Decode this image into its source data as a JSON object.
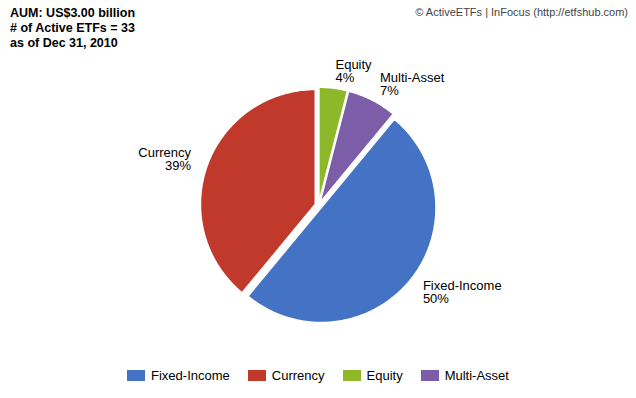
{
  "chart_data": {
    "type": "pie",
    "categories": [
      "Equity",
      "Multi-Asset",
      "Fixed-Income",
      "Currency"
    ],
    "values": [
      4,
      7,
      50,
      39
    ],
    "colors": [
      "#8DB829",
      "#7B5EA7",
      "#4472C4",
      "#C0392B"
    ],
    "data_labels": true,
    "value_labels": [
      "4%",
      "7%",
      "50%",
      "39%"
    ],
    "legend": "bottom",
    "legend_labels": [
      "Fixed-Income",
      "Currency",
      "Equity",
      "Multi-Asset"
    ],
    "annotations": [
      "AUM: US$3.00 billion\n# of Active ETFs = 33\nas of Dec 31, 2010",
      "© ActiveETFs | InFocus (http://etfshub.com)"
    ]
  }
}
